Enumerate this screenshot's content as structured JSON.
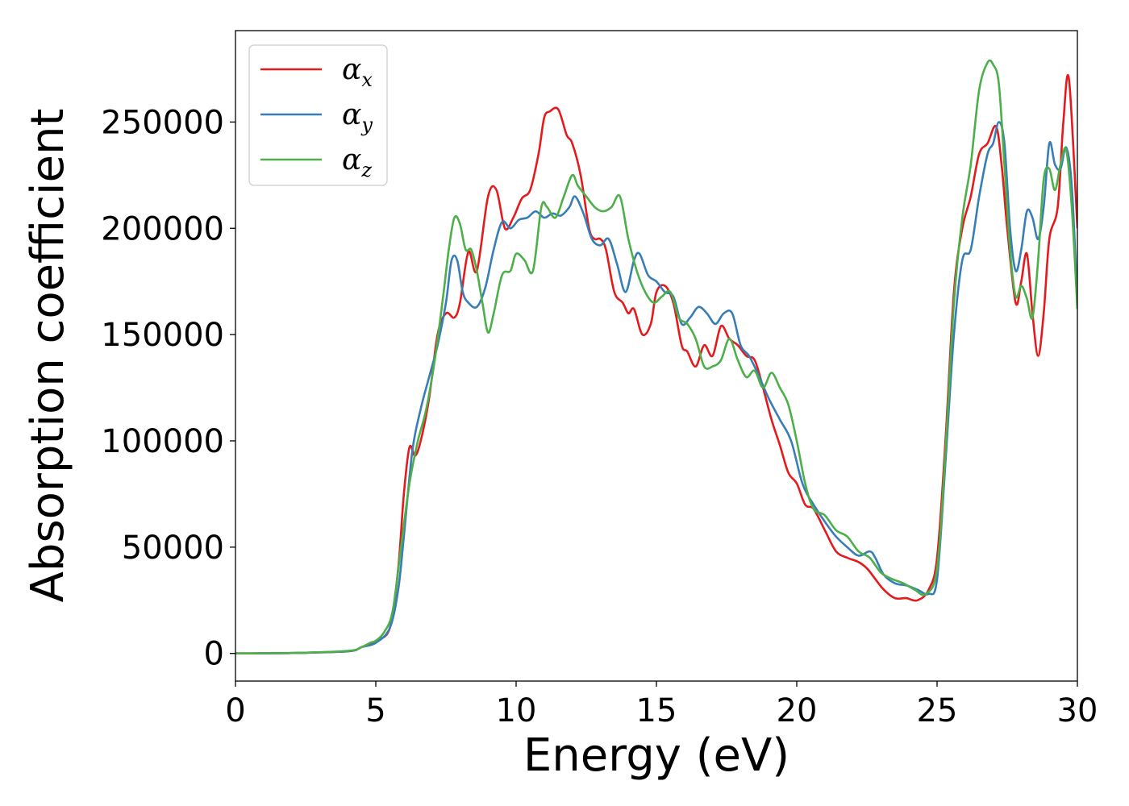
{
  "chart_data": {
    "type": "line",
    "title": "",
    "xlabel": "Energy (eV)",
    "ylabel": "Absorption coefficient",
    "xlim": [
      0,
      30
    ],
    "ylim": [
      -13000,
      293000
    ],
    "xticks": [
      0,
      5,
      10,
      15,
      20,
      25,
      30
    ],
    "yticks": [
      0,
      50000,
      100000,
      150000,
      200000,
      250000
    ],
    "grid": false,
    "legend": "top-left",
    "series": [
      {
        "name": "α",
        "subscript": "x",
        "color": "#e41a1c",
        "x": [
          0,
          2,
          4,
          4.5,
          5,
          5.5,
          5.8,
          6.0,
          6.2,
          6.4,
          6.6,
          6.9,
          7.2,
          7.5,
          7.8,
          8.0,
          8.3,
          8.6,
          9.0,
          9.3,
          9.6,
          9.9,
          10.2,
          10.5,
          10.8,
          11.0,
          11.2,
          11.5,
          11.8,
          12.0,
          12.3,
          12.6,
          12.8,
          13.0,
          13.2,
          13.5,
          13.8,
          14.0,
          14.2,
          14.5,
          14.8,
          15.0,
          15.3,
          15.6,
          15.9,
          16.1,
          16.4,
          16.7,
          17.0,
          17.3,
          17.6,
          17.9,
          18.2,
          18.5,
          18.8,
          19.1,
          19.4,
          19.7,
          20.0,
          20.3,
          20.6,
          21.0,
          21.4,
          21.8,
          22.2,
          22.5,
          22.8,
          23.1,
          23.5,
          23.9,
          24.3,
          24.7,
          25.0,
          25.3,
          25.6,
          25.9,
          26.2,
          26.5,
          26.8,
          27.1,
          27.3,
          27.5,
          27.8,
          28.0,
          28.2,
          28.4,
          28.6,
          28.8,
          29.0,
          29.3,
          29.5,
          29.7,
          30.0
        ],
        "values": [
          0,
          200,
          1000,
          3000,
          6000,
          12000,
          40000,
          75000,
          97000,
          93000,
          100000,
          120000,
          150000,
          160000,
          158000,
          165000,
          189000,
          180000,
          215000,
          218000,
          200000,
          205000,
          214000,
          218000,
          235000,
          252000,
          255000,
          256000,
          244000,
          240000,
          225000,
          200000,
          195000,
          195000,
          190000,
          170000,
          165000,
          160000,
          162000,
          150000,
          155000,
          170000,
          173000,
          165000,
          145000,
          142000,
          135000,
          145000,
          140000,
          154000,
          148000,
          145000,
          140000,
          138000,
          125000,
          110000,
          98000,
          85000,
          80000,
          70000,
          68000,
          58000,
          48000,
          45000,
          43000,
          40000,
          35000,
          30000,
          26000,
          26000,
          25000,
          30000,
          45000,
          100000,
          170000,
          200000,
          215000,
          235000,
          240000,
          248000,
          230000,
          200000,
          165000,
          175000,
          188000,
          160000,
          140000,
          160000,
          195000,
          210000,
          250000,
          270000,
          200000
        ]
      },
      {
        "name": "α",
        "subscript": "y",
        "color": "#377eb8",
        "x": [
          0,
          2,
          4,
          4.5,
          5,
          5.5,
          5.8,
          6.0,
          6.3,
          6.6,
          6.9,
          7.2,
          7.5,
          7.7,
          7.9,
          8.1,
          8.3,
          8.6,
          8.9,
          9.2,
          9.5,
          9.8,
          10.1,
          10.4,
          10.7,
          11.0,
          11.3,
          11.6,
          11.9,
          12.1,
          12.4,
          12.7,
          13.0,
          13.3,
          13.6,
          13.9,
          14.2,
          14.4,
          14.7,
          15.0,
          15.3,
          15.6,
          15.9,
          16.2,
          16.5,
          16.8,
          17.1,
          17.4,
          17.7,
          18.0,
          18.3,
          18.6,
          19.0,
          19.4,
          19.8,
          20.2,
          20.6,
          21.0,
          21.4,
          21.8,
          22.2,
          22.6,
          22.8,
          23.1,
          23.5,
          23.9,
          24.3,
          24.7,
          25.0,
          25.3,
          25.6,
          25.9,
          26.2,
          26.5,
          26.8,
          27.0,
          27.2,
          27.4,
          27.6,
          27.8,
          28.0,
          28.2,
          28.4,
          28.6,
          28.8,
          29.0,
          29.2,
          29.4,
          29.6,
          29.8,
          30.0
        ],
        "values": [
          0,
          200,
          1000,
          3000,
          5000,
          12000,
          30000,
          55000,
          95000,
          115000,
          130000,
          145000,
          165000,
          185000,
          185000,
          170000,
          165000,
          163000,
          172000,
          190000,
          203000,
          200000,
          204000,
          205000,
          208000,
          205000,
          207000,
          206000,
          210000,
          215000,
          207000,
          195000,
          192000,
          195000,
          183000,
          170000,
          185000,
          188000,
          178000,
          175000,
          170000,
          168000,
          155000,
          158000,
          163000,
          160000,
          155000,
          160000,
          160000,
          145000,
          140000,
          132000,
          120000,
          110000,
          100000,
          80000,
          70000,
          62000,
          55000,
          50000,
          46000,
          48000,
          45000,
          37000,
          33000,
          32000,
          30000,
          28000,
          35000,
          90000,
          150000,
          185000,
          190000,
          215000,
          235000,
          240000,
          250000,
          240000,
          200000,
          180000,
          190000,
          208000,
          205000,
          195000,
          210000,
          240000,
          230000,
          228000,
          238000,
          220000,
          165000
        ]
      },
      {
        "name": "α",
        "subscript": "z",
        "color": "#4daf4a",
        "x": [
          0,
          2,
          4,
          4.5,
          4.8,
          5.0,
          5.3,
          5.6,
          5.9,
          6.2,
          6.5,
          6.8,
          7.1,
          7.4,
          7.6,
          7.8,
          8.0,
          8.2,
          8.4,
          8.6,
          8.8,
          9.0,
          9.2,
          9.5,
          9.8,
          10.0,
          10.3,
          10.6,
          10.9,
          11.1,
          11.4,
          11.7,
          12.0,
          12.2,
          12.5,
          12.8,
          13.1,
          13.4,
          13.7,
          14.0,
          14.3,
          14.6,
          14.9,
          15.2,
          15.5,
          15.8,
          16.1,
          16.4,
          16.7,
          17.0,
          17.3,
          17.6,
          17.9,
          18.2,
          18.5,
          18.8,
          19.1,
          19.4,
          19.7,
          20.0,
          20.3,
          20.6,
          21.0,
          21.4,
          21.8,
          22.2,
          22.6,
          23.0,
          23.4,
          23.8,
          24.2,
          24.6,
          25.0,
          25.3,
          25.6,
          25.9,
          26.2,
          26.5,
          26.8,
          27.0,
          27.2,
          27.4,
          27.6,
          27.8,
          28.0,
          28.2,
          28.4,
          28.6,
          28.8,
          29.0,
          29.2,
          29.4,
          29.6,
          29.8,
          30.0
        ],
        "values": [
          0,
          200,
          1200,
          3000,
          5000,
          6000,
          10000,
          20000,
          50000,
          80000,
          100000,
          115000,
          138000,
          168000,
          190000,
          205000,
          202000,
          190000,
          190000,
          180000,
          165000,
          151000,
          160000,
          178000,
          180000,
          188000,
          185000,
          180000,
          210000,
          210000,
          205000,
          215000,
          225000,
          220000,
          215000,
          210000,
          208000,
          210000,
          215000,
          195000,
          180000,
          170000,
          165000,
          168000,
          170000,
          158000,
          155000,
          148000,
          135000,
          135000,
          138000,
          148000,
          138000,
          130000,
          133000,
          125000,
          132000,
          125000,
          117000,
          100000,
          80000,
          68000,
          65000,
          58000,
          55000,
          48000,
          45000,
          38000,
          35000,
          33000,
          30000,
          28000,
          40000,
          95000,
          165000,
          205000,
          230000,
          265000,
          278000,
          277000,
          268000,
          230000,
          190000,
          168000,
          173000,
          167000,
          158000,
          185000,
          223000,
          228000,
          218000,
          230000,
          237000,
          210000,
          162000
        ]
      }
    ]
  }
}
